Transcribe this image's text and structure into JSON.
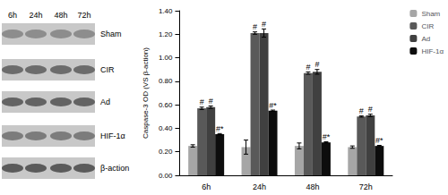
{
  "chart_data": {
    "type": "bar",
    "y_label": "Caspase-3 OD (VS β-action)",
    "categories": [
      "6h",
      "24h",
      "48h",
      "72h"
    ],
    "series": [
      {
        "name": "Sham",
        "color": "#a6a6a6",
        "values": [
          0.25,
          0.24,
          0.25,
          0.24
        ],
        "errors": [
          0.01,
          0.06,
          0.025,
          0.01
        ]
      },
      {
        "name": "CIR",
        "color": "#595959",
        "values": [
          0.57,
          1.21,
          0.87,
          0.5
        ],
        "errors": [
          0.01,
          0.01,
          0.01,
          0.005
        ],
        "annotations": [
          "#",
          "#",
          "#",
          "#"
        ]
      },
      {
        "name": "Ad",
        "color": "#404040",
        "values": [
          0.58,
          1.21,
          0.88,
          0.51
        ],
        "errors": [
          0.01,
          0.035,
          0.02,
          0.01
        ],
        "annotations": [
          "#",
          "#",
          "#",
          "#"
        ]
      },
      {
        "name": "HIF-1α",
        "color": "#0d0d0d",
        "values": [
          0.35,
          0.55,
          0.28,
          0.25
        ],
        "errors": [
          0.005,
          0.005,
          0.005,
          0.005
        ],
        "annotations": [
          "#*",
          "#*",
          "#*",
          "#*"
        ]
      }
    ],
    "ylim": [
      0,
      1.4
    ],
    "yticks": [
      {
        "value": 0,
        "label": "0.00"
      },
      {
        "value": 0.2,
        "label": "0.20"
      },
      {
        "value": 0.4,
        "label": "0.40"
      },
      {
        "value": 0.6,
        "label": "0.60"
      },
      {
        "value": 0.8,
        "label": "0.80"
      },
      {
        "value": 1.0,
        "label": "1.00"
      },
      {
        "value": 1.2,
        "label": "1.20"
      },
      {
        "value": 1.4,
        "label": "1.40"
      }
    ],
    "grid": false,
    "legend": "upper right"
  },
  "blot": {
    "time_labels": [
      "6h",
      "24h",
      "48h",
      "72h"
    ],
    "rows": [
      "Sham",
      "CIR",
      "Ad",
      "HIF-1α",
      "β-action"
    ]
  }
}
